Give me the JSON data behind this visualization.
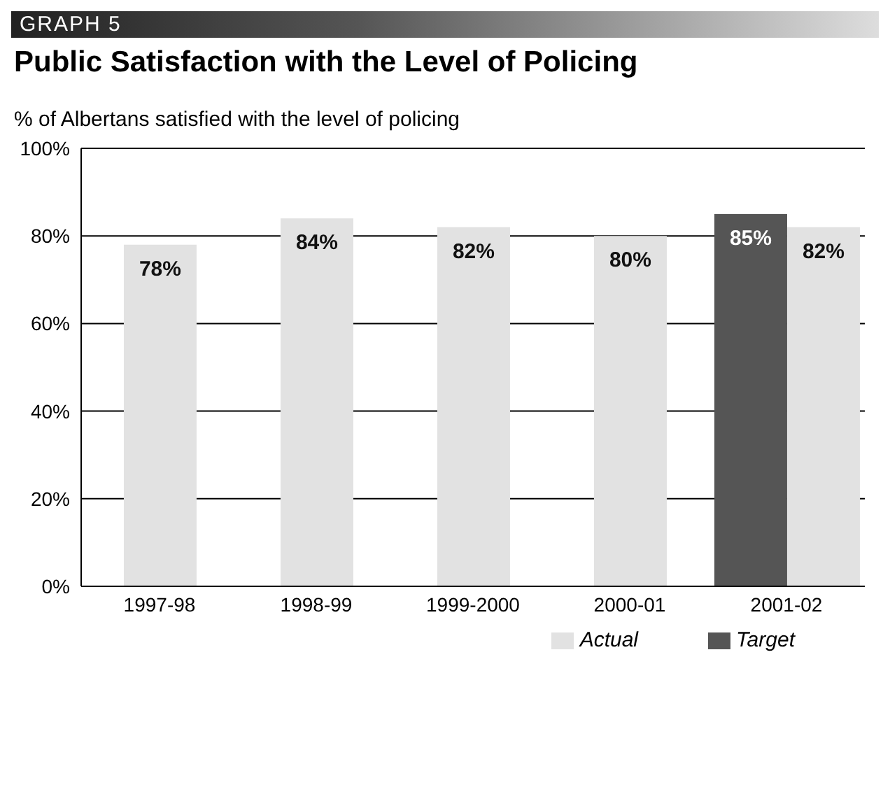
{
  "chart_data": {
    "type": "bar",
    "title": "Public Satisfaction with the Level of Policing",
    "subtitle": "GRAPH 5",
    "ylabel": "% of Albertans satisfied with the level of policing",
    "categories": [
      "1997-98",
      "1998-99",
      "1999-2000",
      "2000-01",
      "2001-02"
    ],
    "series": [
      {
        "name": "Target",
        "color": "#555555",
        "values": [
          null,
          null,
          null,
          null,
          85
        ],
        "value_labels": [
          null,
          null,
          null,
          null,
          "85%"
        ]
      },
      {
        "name": "Actual",
        "color": "#e2e2e2",
        "values": [
          78,
          84,
          82,
          80,
          82
        ],
        "value_labels": [
          "78%",
          "84%",
          "82%",
          "80%",
          "82%"
        ]
      }
    ],
    "ylim": [
      0,
      100
    ],
    "yticks": [
      {
        "value": 0,
        "label": "0%"
      },
      {
        "value": 20,
        "label": "20%"
      },
      {
        "value": 40,
        "label": "40%"
      },
      {
        "value": 60,
        "label": "60%"
      },
      {
        "value": 80,
        "label": "80%"
      },
      {
        "value": 100,
        "label": "100%"
      }
    ],
    "grid": "y",
    "legend": "bottom right"
  }
}
